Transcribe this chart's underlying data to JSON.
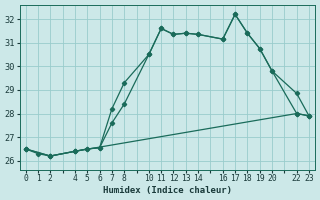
{
  "xlabel": "Humidex (Indice chaleur)",
  "background_color": "#cce8e8",
  "grid_color": "#99cccc",
  "line_color": "#1a6b5a",
  "ylim": [
    25.6,
    32.6
  ],
  "xlim": [
    -0.5,
    23.5
  ],
  "yticks": [
    26,
    27,
    28,
    29,
    30,
    31,
    32
  ],
  "xtick_positions": [
    0,
    1,
    2,
    3,
    4,
    5,
    6,
    7,
    8,
    9,
    10,
    11,
    12,
    13,
    14,
    15,
    16,
    17,
    18,
    19,
    20,
    21,
    22,
    23
  ],
  "xtick_labels": [
    "0",
    "1",
    "2",
    "",
    "4",
    "5",
    "6",
    "7",
    "8",
    "",
    "10",
    "11",
    "12",
    "13",
    "14",
    "",
    "16",
    "17",
    "18",
    "19",
    "20",
    "",
    "22",
    "23"
  ],
  "line1_x": [
    0,
    1,
    2,
    4,
    5,
    6,
    7,
    8,
    10,
    11,
    12,
    13,
    14,
    16,
    17,
    18,
    19,
    20,
    22,
    23
  ],
  "line1_y": [
    26.5,
    26.3,
    26.2,
    26.4,
    26.5,
    26.55,
    28.2,
    29.3,
    30.5,
    31.6,
    31.35,
    31.4,
    31.35,
    31.15,
    32.2,
    31.4,
    30.75,
    29.8,
    28.0,
    27.9
  ],
  "line2_x": [
    0,
    2,
    4,
    5,
    6,
    7,
    8,
    10,
    11,
    12,
    13,
    14,
    16,
    17,
    18,
    19,
    20,
    22,
    23
  ],
  "line2_y": [
    26.5,
    26.2,
    26.4,
    26.5,
    26.55,
    27.6,
    28.4,
    30.5,
    31.6,
    31.35,
    31.4,
    31.35,
    31.15,
    32.2,
    31.4,
    30.75,
    29.8,
    28.85,
    27.9
  ],
  "line3_x": [
    0,
    2,
    4,
    22,
    23
  ],
  "line3_y": [
    26.5,
    26.2,
    26.4,
    28.0,
    27.9
  ]
}
